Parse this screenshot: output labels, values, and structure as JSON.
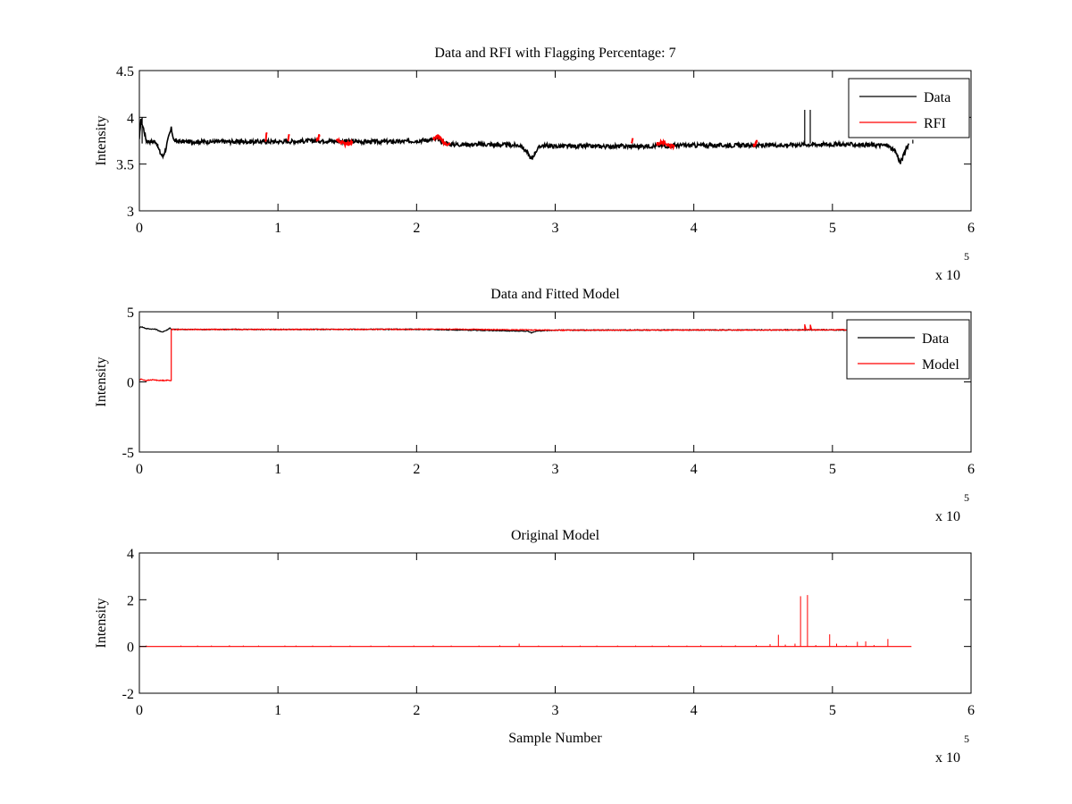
{
  "figure": {
    "background": "#ffffff",
    "x_multiplier": {
      "base": "x 10",
      "exponent": "5"
    }
  },
  "colors": {
    "data": "#000000",
    "rfi": "#ff0000",
    "axes": "#000000"
  },
  "chart_data": [
    {
      "type": "line",
      "title": "Data and RFI with Flagging Percentage: 7",
      "xlabel": "",
      "ylabel": "Intensity",
      "xlim": [
        0,
        6
      ],
      "ylim": [
        3,
        4.5
      ],
      "xticks": [
        "0",
        "1",
        "2",
        "3",
        "4",
        "5",
        "6"
      ],
      "yticks": [
        "3",
        "3.5",
        "4",
        "4.5"
      ],
      "ytick_values": [
        3,
        3.5,
        4,
        4.5
      ],
      "legend_position": "top-right",
      "series": [
        {
          "name": "Data",
          "color": "#000000",
          "x": [
            0.0,
            0.01,
            0.03,
            0.05,
            0.08,
            0.12,
            0.15,
            0.17,
            0.19,
            0.21,
            0.23,
            0.25,
            0.3,
            0.5,
            0.8,
            1.0,
            1.3,
            1.6,
            1.9,
            2.1,
            2.15,
            2.2,
            2.25,
            2.5,
            2.75,
            2.8,
            2.83,
            2.86,
            2.9,
            3.0,
            3.3,
            3.6,
            3.9,
            4.2,
            4.5,
            4.8,
            5.1,
            5.4,
            5.46,
            5.49,
            5.52,
            5.55
          ],
          "y": [
            3.75,
            3.98,
            3.88,
            3.75,
            3.74,
            3.74,
            3.62,
            3.58,
            3.66,
            3.78,
            3.88,
            3.75,
            3.74,
            3.74,
            3.74,
            3.74,
            3.75,
            3.74,
            3.74,
            3.76,
            3.77,
            3.73,
            3.71,
            3.71,
            3.7,
            3.62,
            3.55,
            3.64,
            3.7,
            3.69,
            3.69,
            3.69,
            3.7,
            3.7,
            3.7,
            3.71,
            3.71,
            3.7,
            3.62,
            3.51,
            3.62,
            3.72
          ],
          "spikes": [
            {
              "x": 4.8,
              "top": 4.08
            },
            {
              "x": 4.84,
              "top": 4.08
            },
            {
              "x": 0.02,
              "top": 4.0
            },
            {
              "x": 5.58,
              "top": 3.76
            }
          ]
        },
        {
          "name": "RFI",
          "color": "#ff0000",
          "segments": [
            {
              "x": [
                0.91,
                0.92
              ],
              "y": [
                3.75,
                3.84
              ]
            },
            {
              "x": [
                1.07,
                1.08
              ],
              "y": [
                3.75,
                3.83
              ]
            },
            {
              "x": [
                1.28,
                1.3
              ],
              "y": [
                3.75,
                3.81
              ]
            },
            {
              "x": [
                1.42,
                1.46,
                1.5,
                1.54
              ],
              "y": [
                3.75,
                3.73,
                3.71,
                3.74
              ]
            },
            {
              "x": [
                2.12,
                2.16,
                2.2,
                2.24
              ],
              "y": [
                3.77,
                3.8,
                3.73,
                3.7
              ]
            },
            {
              "x": [
                3.55,
                3.56
              ],
              "y": [
                3.71,
                3.78
              ]
            },
            {
              "x": [
                3.73,
                3.77,
                3.81,
                3.86
              ],
              "y": [
                3.71,
                3.74,
                3.7,
                3.69
              ]
            },
            {
              "x": [
                4.43,
                4.46
              ],
              "y": [
                3.7,
                3.75
              ]
            }
          ]
        }
      ]
    },
    {
      "type": "line",
      "title": "Data and Fitted Model",
      "xlabel": "",
      "ylabel": "Intensity",
      "xlim": [
        0,
        6
      ],
      "ylim": [
        -5,
        5
      ],
      "xticks": [
        "0",
        "1",
        "2",
        "3",
        "4",
        "5",
        "6"
      ],
      "yticks": [
        "-5",
        "0",
        "5"
      ],
      "ytick_values": [
        -5,
        0,
        5
      ],
      "legend_position": "top-right",
      "series": [
        {
          "name": "Data",
          "color": "#000000",
          "x": [
            0.0,
            0.01,
            0.05,
            0.12,
            0.16,
            0.2,
            0.22,
            0.23,
            0.3,
            1.0,
            2.0,
            2.8,
            2.83,
            2.86,
            3.0,
            4.0,
            5.0,
            5.46,
            5.49,
            5.52,
            5.55
          ],
          "y": [
            3.8,
            3.95,
            3.8,
            3.75,
            3.55,
            3.7,
            3.85,
            3.75,
            3.74,
            3.74,
            3.75,
            3.62,
            3.5,
            3.62,
            3.69,
            3.7,
            3.71,
            3.62,
            3.5,
            3.62,
            3.72
          ]
        },
        {
          "name": "Model",
          "color": "#ff0000",
          "x": [
            0.0,
            0.01,
            0.05,
            0.1,
            0.15,
            0.2,
            0.23,
            0.23,
            0.3,
            1.0,
            2.0,
            2.2,
            3.0,
            4.0,
            4.8,
            4.8,
            4.81,
            4.84,
            4.84,
            4.85,
            5.0,
            5.55
          ],
          "y": [
            0.1,
            0.2,
            0.1,
            0.15,
            0.1,
            0.12,
            0.1,
            3.74,
            3.74,
            3.74,
            3.75,
            3.76,
            3.69,
            3.7,
            3.7,
            4.1,
            3.71,
            3.71,
            4.1,
            3.71,
            3.71,
            3.72
          ]
        }
      ]
    },
    {
      "type": "line",
      "title": "Original Model",
      "xlabel": "Sample Number",
      "ylabel": "Intensity",
      "xlim": [
        0,
        6
      ],
      "ylim": [
        -2,
        4
      ],
      "xticks": [
        "0",
        "1",
        "2",
        "3",
        "4",
        "5",
        "6"
      ],
      "yticks": [
        "-2",
        "0",
        "2",
        "4"
      ],
      "ytick_values": [
        -2,
        0,
        2,
        4
      ],
      "series": [
        {
          "name": "",
          "color": "#ff0000",
          "baseline": 0,
          "x_end": 5.57,
          "spikes": [
            {
              "x": 0.05,
              "h": 0.04
            },
            {
              "x": 0.3,
              "h": 0.04
            },
            {
              "x": 0.42,
              "h": 0.04
            },
            {
              "x": 0.52,
              "h": 0.04
            },
            {
              "x": 0.65,
              "h": 0.05
            },
            {
              "x": 0.75,
              "h": 0.04
            },
            {
              "x": 0.86,
              "h": 0.04
            },
            {
              "x": 1.05,
              "h": 0.04
            },
            {
              "x": 1.13,
              "h": 0.04
            },
            {
              "x": 1.25,
              "h": 0.04
            },
            {
              "x": 1.38,
              "h": 0.04
            },
            {
              "x": 1.52,
              "h": 0.04
            },
            {
              "x": 1.67,
              "h": 0.04
            },
            {
              "x": 1.8,
              "h": 0.04
            },
            {
              "x": 1.98,
              "h": 0.04
            },
            {
              "x": 2.12,
              "h": 0.05
            },
            {
              "x": 2.25,
              "h": 0.04
            },
            {
              "x": 2.45,
              "h": 0.04
            },
            {
              "x": 2.6,
              "h": 0.05
            },
            {
              "x": 2.74,
              "h": 0.12
            },
            {
              "x": 2.88,
              "h": 0.04
            },
            {
              "x": 3.05,
              "h": 0.04
            },
            {
              "x": 3.18,
              "h": 0.04
            },
            {
              "x": 3.3,
              "h": 0.04
            },
            {
              "x": 3.45,
              "h": 0.04
            },
            {
              "x": 3.58,
              "h": 0.04
            },
            {
              "x": 3.7,
              "h": 0.04
            },
            {
              "x": 3.82,
              "h": 0.05
            },
            {
              "x": 3.95,
              "h": 0.04
            },
            {
              "x": 4.05,
              "h": 0.05
            },
            {
              "x": 4.2,
              "h": 0.04
            },
            {
              "x": 4.3,
              "h": 0.05
            },
            {
              "x": 4.45,
              "h": 0.06
            },
            {
              "x": 4.55,
              "h": 0.1
            },
            {
              "x": 4.61,
              "h": 0.5
            },
            {
              "x": 4.66,
              "h": 0.08
            },
            {
              "x": 4.73,
              "h": 0.12
            },
            {
              "x": 4.77,
              "h": 2.15
            },
            {
              "x": 4.82,
              "h": 2.2
            },
            {
              "x": 4.88,
              "h": 0.06
            },
            {
              "x": 4.98,
              "h": 0.52
            },
            {
              "x": 5.03,
              "h": 0.12
            },
            {
              "x": 5.1,
              "h": 0.05
            },
            {
              "x": 5.18,
              "h": 0.2
            },
            {
              "x": 5.24,
              "h": 0.22
            },
            {
              "x": 5.3,
              "h": 0.06
            },
            {
              "x": 5.4,
              "h": 0.32
            }
          ]
        }
      ]
    }
  ]
}
